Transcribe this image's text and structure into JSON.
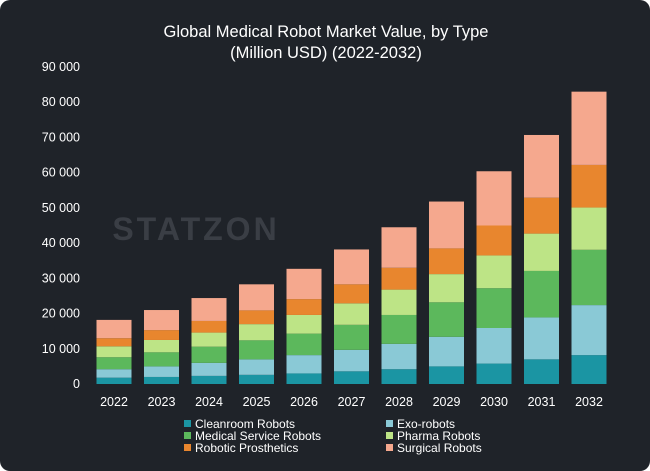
{
  "chart_data": {
    "type": "bar",
    "stacked": true,
    "title": "Global Medical Robot Market Value, by Type",
    "subtitle": "(Million USD) (2022-2032)",
    "xlabel": "",
    "ylabel": "",
    "ylim": [
      0,
      90000
    ],
    "y_ticks": [
      "0",
      "10 000",
      "20 000",
      "30 000",
      "40 000",
      "50 000",
      "60 000",
      "70 000",
      "80 000",
      "90 000"
    ],
    "grid": false,
    "legend_position": "bottom",
    "watermark": "STATZON",
    "categories": [
      "2022",
      "2023",
      "2024",
      "2025",
      "2026",
      "2027",
      "2028",
      "2029",
      "2030",
      "2031",
      "2032"
    ],
    "series": [
      {
        "name": "Cleanroom Robots",
        "color": "#1b95a3",
        "values": [
          1800,
          2000,
          2300,
          2600,
          3000,
          3600,
          4200,
          5000,
          5800,
          7000,
          8200
        ]
      },
      {
        "name": "Exo-robots",
        "color": "#8ac9d6",
        "values": [
          2400,
          3000,
          3700,
          4400,
          5200,
          6100,
          7200,
          8400,
          10100,
          11900,
          14200
        ]
      },
      {
        "name": "Medical Service Robots",
        "color": "#5cb85c",
        "values": [
          3400,
          4000,
          4600,
          5400,
          6100,
          7100,
          8200,
          9800,
          11300,
          13200,
          15700
        ]
      },
      {
        "name": "Pharma Robots",
        "color": "#bde486",
        "values": [
          3100,
          3500,
          4000,
          4600,
          5300,
          6100,
          7200,
          8000,
          9300,
          10600,
          12000
        ]
      },
      {
        "name": "Robotic Prosthetics",
        "color": "#e8862e",
        "values": [
          2300,
          2800,
          3300,
          3900,
          4500,
          5400,
          6200,
          7300,
          8500,
          10200,
          12100
        ]
      },
      {
        "name": "Surgical Robots",
        "color": "#f5a88e",
        "values": [
          5200,
          5700,
          6500,
          7400,
          8600,
          9900,
          11500,
          13300,
          15400,
          17800,
          20800
        ]
      }
    ]
  }
}
